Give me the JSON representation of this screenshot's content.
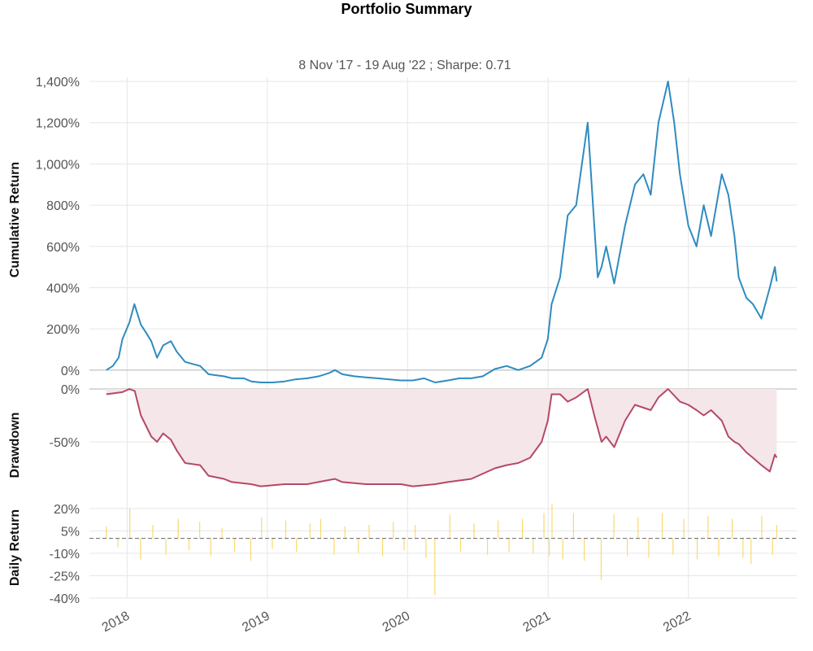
{
  "title": "Portfolio Summary",
  "subtitle": "8 Nov '17 - 19 Aug '22 ;  Sharpe: 0.71",
  "colors": {
    "cumulative": "#2f8bc0",
    "drawdown_line": "#b54966",
    "drawdown_fill": "#f5e6ea",
    "daily": "#fbd96b",
    "grid": "#e6e6e6",
    "baseline": "#cccccc"
  },
  "chart_data": [
    {
      "type": "line",
      "ylabel": "Cumulative Return",
      "yunit": "%",
      "ylim": [
        -60,
        1420
      ],
      "yticks": [
        0,
        200,
        400,
        600,
        800,
        1000,
        1200,
        1400
      ],
      "ytick_labels": [
        "0%",
        "200%",
        "400%",
        "600%",
        "800%",
        "1,000%",
        "1,200%",
        "1,400%"
      ],
      "grid": true,
      "series": [
        {
          "x": [
            "2017-11-08",
            "2017-11-25",
            "2017-12-10",
            "2017-12-20",
            "2018-01-07",
            "2018-01-20",
            "2018-02-06",
            "2018-02-20",
            "2018-03-05",
            "2018-03-20",
            "2018-04-05",
            "2018-04-25",
            "2018-05-10",
            "2018-06-01",
            "2018-06-20",
            "2018-07-10",
            "2018-08-01",
            "2018-08-20",
            "2018-09-10",
            "2018-10-01",
            "2018-11-01",
            "2018-11-20",
            "2018-12-15",
            "2019-01-15",
            "2019-02-15",
            "2019-03-15",
            "2019-04-15",
            "2019-05-15",
            "2019-06-10",
            "2019-06-26",
            "2019-07-15",
            "2019-08-15",
            "2019-09-15",
            "2019-10-15",
            "2019-11-15",
            "2019-12-15",
            "2020-01-15",
            "2020-02-13",
            "2020-03-13",
            "2020-04-15",
            "2020-05-15",
            "2020-06-15",
            "2020-07-15",
            "2020-08-15",
            "2020-09-15",
            "2020-10-15",
            "2020-11-15",
            "2020-12-15",
            "2020-12-31",
            "2021-01-10",
            "2021-02-01",
            "2021-02-21",
            "2021-03-15",
            "2021-04-14",
            "2021-05-01",
            "2021-05-10",
            "2021-05-20",
            "2021-06-01",
            "2021-06-22",
            "2021-07-20",
            "2021-08-15",
            "2021-09-06",
            "2021-09-25",
            "2021-10-15",
            "2021-11-09",
            "2021-11-25",
            "2021-12-10",
            "2022-01-01",
            "2022-01-22",
            "2022-02-10",
            "2022-03-01",
            "2022-03-29",
            "2022-04-15",
            "2022-05-01",
            "2022-05-12",
            "2022-06-01",
            "2022-06-18",
            "2022-07-10",
            "2022-08-01",
            "2022-08-14",
            "2022-08-19"
          ],
          "values": [
            0,
            20,
            60,
            150,
            230,
            320,
            220,
            180,
            140,
            60,
            120,
            140,
            90,
            40,
            30,
            20,
            -20,
            -25,
            -30,
            -40,
            -40,
            -55,
            -60,
            -60,
            -55,
            -45,
            -40,
            -30,
            -15,
            0,
            -20,
            -30,
            -35,
            -40,
            -45,
            -50,
            -50,
            -40,
            -60,
            -50,
            -40,
            -40,
            -30,
            5,
            20,
            0,
            20,
            60,
            150,
            320,
            450,
            750,
            800,
            1200,
            700,
            450,
            500,
            600,
            420,
            700,
            900,
            950,
            850,
            1200,
            1400,
            1200,
            950,
            700,
            600,
            800,
            650,
            950,
            850,
            650,
            450,
            350,
            320,
            250,
            400,
            500,
            430
          ]
        }
      ]
    },
    {
      "type": "area",
      "ylabel": "Drawdown",
      "yunit": "%",
      "ylim": [
        -100,
        0
      ],
      "yticks": [
        0,
        -50
      ],
      "ytick_labels": [
        "0%",
        "-50%"
      ],
      "grid": true,
      "series": [
        {
          "x": [
            "2017-11-08",
            "2017-12-20",
            "2018-01-07",
            "2018-01-21",
            "2018-02-06",
            "2018-03-05",
            "2018-03-20",
            "2018-04-05",
            "2018-04-25",
            "2018-05-10",
            "2018-06-01",
            "2018-07-10",
            "2018-08-01",
            "2018-09-10",
            "2018-10-01",
            "2018-11-20",
            "2018-12-15",
            "2019-02-15",
            "2019-03-15",
            "2019-04-15",
            "2019-06-26",
            "2019-07-15",
            "2019-09-15",
            "2019-12-15",
            "2020-01-15",
            "2020-03-13",
            "2020-04-15",
            "2020-06-15",
            "2020-08-15",
            "2020-09-15",
            "2020-10-15",
            "2020-11-15",
            "2020-12-15",
            "2020-12-31",
            "2021-01-10",
            "2021-02-01",
            "2021-02-21",
            "2021-03-15",
            "2021-04-14",
            "2021-05-01",
            "2021-05-20",
            "2021-06-01",
            "2021-06-22",
            "2021-07-20",
            "2021-08-15",
            "2021-09-25",
            "2021-10-15",
            "2021-11-09",
            "2021-12-10",
            "2022-01-01",
            "2022-01-22",
            "2022-02-10",
            "2022-03-01",
            "2022-03-29",
            "2022-04-15",
            "2022-05-01",
            "2022-05-12",
            "2022-06-01",
            "2022-06-18",
            "2022-07-10",
            "2022-08-01",
            "2022-08-14",
            "2022-08-19"
          ],
          "values": [
            -5,
            -3,
            0,
            -2,
            -25,
            -45,
            -50,
            -42,
            -48,
            -58,
            -70,
            -72,
            -82,
            -85,
            -88,
            -90,
            -92,
            -90,
            -90,
            -90,
            -85,
            -88,
            -90,
            -90,
            -92,
            -90,
            -88,
            -85,
            -75,
            -72,
            -70,
            -65,
            -50,
            -30,
            -5,
            -5,
            -12,
            -8,
            0,
            -25,
            -50,
            -45,
            -55,
            -30,
            -15,
            -20,
            -8,
            0,
            -12,
            -15,
            -20,
            -25,
            -20,
            -30,
            -45,
            -50,
            -52,
            -60,
            -65,
            -72,
            -78,
            -62,
            -65
          ]
        }
      ]
    },
    {
      "type": "bar",
      "ylabel": "Daily Return",
      "yunit": "%",
      "ylim": [
        -40,
        27
      ],
      "yticks": [
        20,
        5,
        -10,
        -25,
        -40
      ],
      "ytick_labels": [
        "20%",
        "5%",
        "-10%",
        "-25%",
        "-40%"
      ],
      "baseline_value": 0,
      "series": [
        {
          "x": [
            "2017-11-08",
            "2017-12-08",
            "2018-01-08",
            "2018-02-05",
            "2018-03-09",
            "2018-04-12",
            "2018-05-14",
            "2018-06-11",
            "2018-07-09",
            "2018-08-07",
            "2018-09-05",
            "2018-10-08",
            "2018-11-19",
            "2018-12-17",
            "2019-01-14",
            "2019-02-18",
            "2019-03-18",
            "2019-04-22",
            "2019-05-20",
            "2019-06-24",
            "2019-07-22",
            "2019-08-26",
            "2019-09-23",
            "2019-10-28",
            "2019-11-25",
            "2019-12-23",
            "2020-01-21",
            "2020-02-18",
            "2020-03-12",
            "2020-04-20",
            "2020-05-18",
            "2020-06-22",
            "2020-07-27",
            "2020-08-24",
            "2020-09-21",
            "2020-10-26",
            "2020-11-23",
            "2020-12-21",
            "2021-01-04",
            "2021-01-11",
            "2021-02-08",
            "2021-03-08",
            "2021-04-05",
            "2021-05-19",
            "2021-06-21",
            "2021-07-26",
            "2021-08-23",
            "2021-09-20",
            "2021-10-25",
            "2021-11-22",
            "2021-12-20",
            "2022-01-24",
            "2022-02-21",
            "2022-03-21",
            "2022-04-25",
            "2022-05-23",
            "2022-06-13",
            "2022-07-11",
            "2022-08-08",
            "2022-08-19"
          ],
          "values": [
            8,
            -6,
            20,
            -14,
            9,
            -11,
            13,
            -8,
            11,
            -12,
            7,
            -9,
            -15,
            14,
            -7,
            12,
            -9,
            10,
            13,
            -11,
            8,
            -10,
            9,
            -12,
            11,
            -8,
            9,
            -13,
            -38,
            16,
            -9,
            10,
            -11,
            12,
            -9,
            13,
            -10,
            17,
            -12,
            23,
            -14,
            17,
            -15,
            -28,
            16,
            -12,
            14,
            -13,
            17,
            -11,
            13,
            -14,
            15,
            -12,
            13,
            -13,
            -17,
            15,
            -11,
            9
          ]
        }
      ]
    }
  ],
  "x_axis": {
    "range": [
      "2017-09-25",
      "2022-10-10"
    ],
    "ticks": [
      "2018-01-01",
      "2019-01-01",
      "2020-01-01",
      "2021-01-01",
      "2022-01-01"
    ],
    "tick_labels": [
      "2018",
      "2019",
      "2020",
      "2021",
      "2022"
    ]
  }
}
